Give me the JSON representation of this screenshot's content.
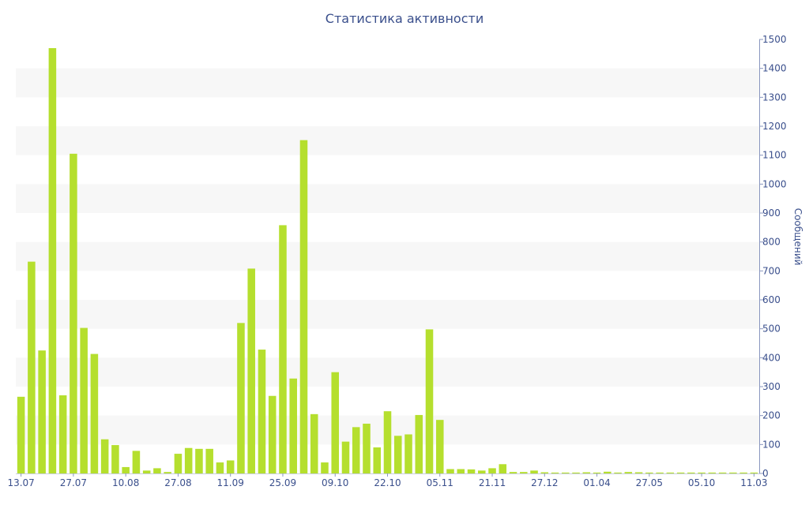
{
  "chart_data": {
    "type": "bar",
    "title": "Статистика активности",
    "ylabel": "Сообщений",
    "xlabel": "",
    "ylim": [
      0,
      1500
    ],
    "y_ticks": [
      0,
      100,
      200,
      300,
      400,
      500,
      600,
      700,
      800,
      900,
      1000,
      1100,
      1200,
      1300,
      1400,
      1500
    ],
    "y_axis_side": "right",
    "grid": "horizontal alternating bands",
    "bar_color": "#b5df2e",
    "band_color": "#f7f7f7",
    "text_color": "#3a4f8c",
    "x_tick_labels": [
      {
        "label": "13.07",
        "index": 0
      },
      {
        "label": "27.07",
        "index": 5
      },
      {
        "label": "10.08",
        "index": 10
      },
      {
        "label": "27.08",
        "index": 15
      },
      {
        "label": "11.09",
        "index": 20
      },
      {
        "label": "25.09",
        "index": 25
      },
      {
        "label": "09.10",
        "index": 30
      },
      {
        "label": "22.10",
        "index": 35
      },
      {
        "label": "05.11",
        "index": 40
      },
      {
        "label": "21.11",
        "index": 45
      },
      {
        "label": "27.12",
        "index": 50
      },
      {
        "label": "01.04",
        "index": 55
      },
      {
        "label": "27.05",
        "index": 60
      },
      {
        "label": "05.10",
        "index": 65
      },
      {
        "label": "11.03",
        "index": 70
      }
    ],
    "values": [
      265,
      732,
      425,
      1470,
      270,
      1105,
      503,
      413,
      118,
      98,
      22,
      78,
      10,
      18,
      5,
      68,
      88,
      85,
      85,
      38,
      45,
      520,
      708,
      428,
      268,
      858,
      328,
      1152,
      205,
      38,
      350,
      110,
      160,
      172,
      90,
      215,
      130,
      135,
      202,
      498,
      185,
      15,
      15,
      14,
      10,
      18,
      32,
      5,
      5,
      10,
      4,
      3,
      3,
      3,
      4,
      3,
      6,
      3,
      5,
      4,
      3,
      3,
      3,
      3,
      3,
      3,
      3,
      3,
      3,
      3,
      3
    ]
  }
}
